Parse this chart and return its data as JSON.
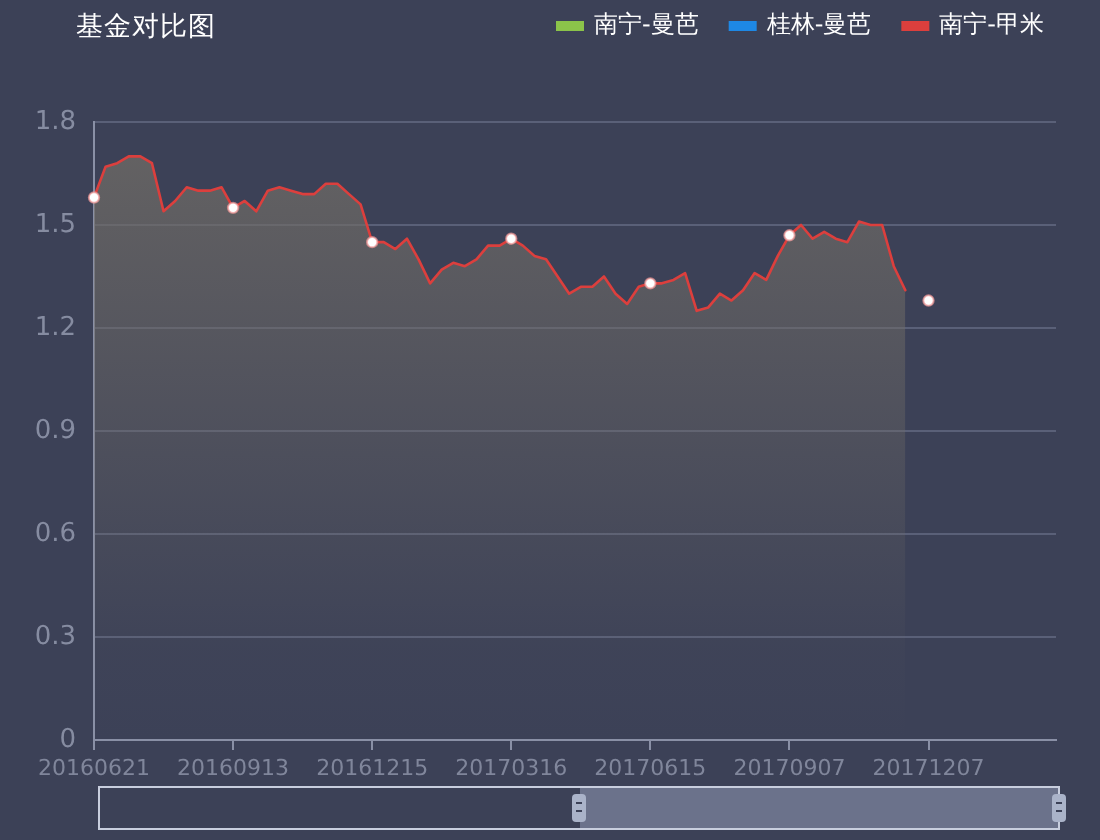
{
  "chart_data": {
    "type": "area",
    "title": "基金对比图",
    "categories": [
      "20160621",
      null,
      null,
      null,
      null,
      null,
      null,
      null,
      null,
      null,
      null,
      null,
      "20160913",
      null,
      null,
      null,
      null,
      null,
      null,
      null,
      null,
      null,
      null,
      null,
      "20161215",
      null,
      null,
      null,
      null,
      null,
      null,
      null,
      null,
      null,
      null,
      null,
      "20170316",
      null,
      null,
      null,
      null,
      null,
      null,
      null,
      null,
      null,
      null,
      null,
      "20170615",
      null,
      null,
      null,
      null,
      null,
      null,
      null,
      null,
      null,
      null,
      null,
      "20170907",
      null,
      null,
      null,
      null,
      null,
      null,
      null,
      null,
      null,
      null,
      null,
      "20171207",
      null,
      null,
      null,
      null,
      null,
      null,
      null,
      null,
      null,
      null,
      null
    ],
    "series": [
      {
        "name": "南宁-曼芭",
        "color": "#8bc34a",
        "values": [
          null,
          null,
          null,
          null,
          null,
          null,
          null,
          null,
          null,
          null,
          null,
          null,
          null,
          null,
          null,
          null,
          null,
          null,
          null,
          null,
          null,
          null,
          null,
          null,
          null,
          null,
          null,
          null,
          null,
          null,
          null,
          null,
          null,
          null,
          null,
          null,
          null,
          null,
          null,
          null,
          null,
          null,
          null,
          null,
          null,
          null,
          null,
          null,
          null,
          null,
          null,
          null,
          null,
          null,
          null,
          null,
          null,
          null,
          null,
          null,
          null,
          null,
          null,
          null,
          null,
          null,
          null,
          null,
          null,
          null,
          null,
          null,
          null,
          null,
          null,
          null,
          null,
          null,
          null,
          null,
          null,
          null,
          null,
          null
        ]
      },
      {
        "name": "桂林-曼芭",
        "color": "#1e88e5",
        "values": [
          null,
          null,
          null,
          null,
          null,
          null,
          null,
          null,
          null,
          null,
          null,
          null,
          null,
          null,
          null,
          null,
          null,
          null,
          null,
          null,
          null,
          null,
          null,
          null,
          null,
          null,
          null,
          null,
          null,
          null,
          null,
          null,
          null,
          null,
          null,
          null,
          null,
          null,
          null,
          null,
          null,
          null,
          null,
          null,
          null,
          null,
          null,
          null,
          null,
          null,
          null,
          null,
          null,
          null,
          null,
          null,
          null,
          null,
          null,
          null,
          null,
          null,
          null,
          null,
          null,
          null,
          null,
          null,
          null,
          null,
          null,
          null,
          null,
          null,
          null,
          null,
          null,
          null,
          null,
          null,
          null,
          null,
          null,
          null
        ]
      },
      {
        "name": "南宁-甲米",
        "color": "#dc3f3d",
        "values": [
          1.58,
          1.67,
          1.68,
          1.7,
          1.7,
          1.68,
          1.54,
          1.57,
          1.61,
          1.6,
          1.6,
          1.61,
          1.55,
          1.57,
          1.54,
          1.6,
          1.61,
          1.6,
          1.59,
          1.59,
          1.62,
          1.62,
          1.59,
          1.56,
          1.45,
          1.45,
          1.43,
          1.46,
          1.4,
          1.33,
          1.37,
          1.39,
          1.38,
          1.4,
          1.44,
          1.44,
          1.46,
          1.44,
          1.41,
          1.4,
          1.35,
          1.3,
          1.32,
          1.32,
          1.35,
          1.3,
          1.27,
          1.32,
          1.33,
          1.33,
          1.34,
          1.36,
          1.25,
          1.26,
          1.3,
          1.28,
          1.31,
          1.36,
          1.34,
          1.41,
          1.47,
          1.5,
          1.46,
          1.48,
          1.46,
          1.45,
          1.51,
          1.5,
          1.5,
          1.38,
          1.31,
          null,
          null,
          null,
          null,
          null,
          null,
          null,
          null,
          null,
          null,
          null,
          null,
          null
        ]
      },
      {
        "type": "scatter",
        "marker": "circle",
        "color": "#ffffff",
        "values": [
          1.58,
          null,
          null,
          null,
          null,
          null,
          null,
          null,
          null,
          null,
          null,
          null,
          1.55,
          null,
          null,
          null,
          null,
          null,
          null,
          null,
          null,
          null,
          null,
          null,
          1.45,
          null,
          null,
          null,
          null,
          null,
          null,
          null,
          null,
          null,
          null,
          null,
          1.46,
          null,
          null,
          null,
          null,
          null,
          null,
          null,
          null,
          null,
          null,
          null,
          1.33,
          null,
          null,
          null,
          null,
          null,
          null,
          null,
          null,
          null,
          null,
          null,
          1.47,
          null,
          null,
          null,
          null,
          null,
          null,
          null,
          null,
          null,
          null,
          null,
          1.28,
          null,
          null,
          null,
          null,
          null,
          null,
          null,
          null,
          null,
          null,
          null
        ]
      }
    ],
    "ylim": [
      0,
      1.8
    ],
    "yticks": [
      0,
      0.3,
      0.6,
      0.9,
      1.2,
      1.5,
      1.8
    ],
    "grid": "y",
    "legend": "top right"
  }
}
